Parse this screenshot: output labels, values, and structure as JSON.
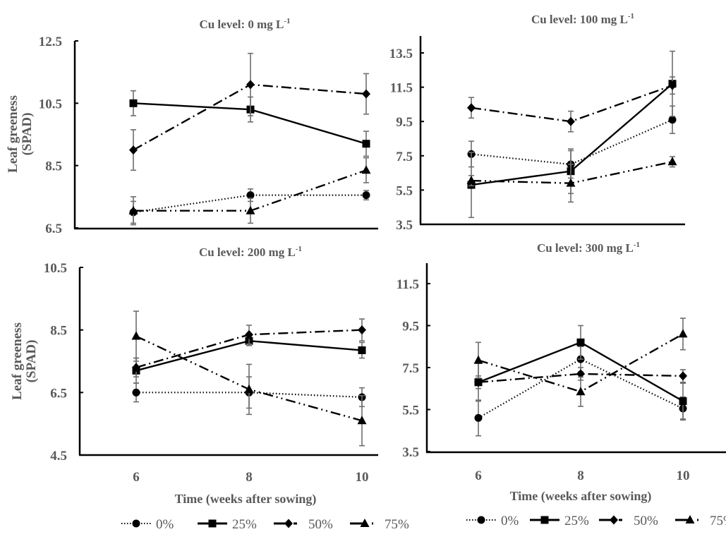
{
  "figure": {
    "legend": [
      "0%",
      "25%",
      "50%",
      "75%"
    ],
    "ylabel_line1": "Leaf  greeness",
    "ylabel_line2": "(SPAD)",
    "xlabel": "Time (weeks after sowing)"
  },
  "chart_data": [
    {
      "type": "line",
      "title": "Cu level: 0 mg L",
      "title_sup": "-1",
      "xlabel": "",
      "ylabel": "Leaf greeness (SPAD)",
      "x": [
        6,
        8,
        10
      ],
      "ylim": [
        6.5,
        12.5
      ],
      "yticks": [
        "12.5",
        "10.5",
        "8.5",
        "6.5"
      ],
      "xticks": [],
      "series": [
        {
          "name": "0%",
          "marker": "circle",
          "line": "dotted",
          "values": [
            7.0,
            7.55,
            7.55
          ],
          "errors": [
            0.35,
            0.2,
            0.15
          ]
        },
        {
          "name": "25%",
          "marker": "square",
          "line": "solid",
          "values": [
            10.5,
            10.3,
            9.2
          ],
          "errors": [
            0.4,
            0.4,
            0.4
          ]
        },
        {
          "name": "50%",
          "marker": "diamond",
          "line": "dashdot",
          "values": [
            9.0,
            11.1,
            10.8
          ],
          "errors": [
            0.65,
            1.0,
            0.65
          ]
        },
        {
          "name": "75%",
          "marker": "triangle",
          "line": "dashdotdot",
          "values": [
            7.05,
            7.05,
            8.35
          ],
          "errors": [
            0.45,
            0.4,
            0.4
          ]
        }
      ]
    },
    {
      "type": "line",
      "title": "Cu level: 100 mg L",
      "title_sup": "-1",
      "xlabel": "",
      "ylabel": "",
      "x": [
        6,
        8,
        10
      ],
      "ylim": [
        3.5,
        13.5
      ],
      "yticks": [
        "13.5",
        "11.5",
        "9.5",
        "7.5",
        "5.5",
        "3.5"
      ],
      "xticks": [],
      "series": [
        {
          "name": "0%",
          "marker": "circle",
          "line": "dotted",
          "values": [
            7.6,
            7.0,
            9.6
          ],
          "errors": [
            0.75,
            0.8,
            0.8
          ]
        },
        {
          "name": "25%",
          "marker": "square",
          "line": "solid",
          "values": [
            5.8,
            6.6,
            11.7
          ],
          "errors": [
            1.9,
            1.3,
            1.9
          ]
        },
        {
          "name": "50%",
          "marker": "diamond",
          "line": "dashdot",
          "values": [
            10.3,
            9.5,
            11.6
          ],
          "errors": [
            0.6,
            0.6,
            0.5
          ]
        },
        {
          "name": "75%",
          "marker": "triangle",
          "line": "dashdotdot",
          "values": [
            6.05,
            5.9,
            7.15
          ],
          "errors": [
            0.3,
            1.1,
            0.3
          ]
        }
      ]
    },
    {
      "type": "line",
      "title": "Cu level: 200 mg L",
      "title_sup": "-1",
      "xlabel": "Time (weeks after sowing)",
      "ylabel": "Leaf greeness (SPAD)",
      "x": [
        6,
        8,
        10
      ],
      "ylim": [
        4.5,
        10.5
      ],
      "yticks": [
        "10.5",
        "8.5",
        "6.5",
        "4.5"
      ],
      "xticks": [
        "6",
        "8",
        "10"
      ],
      "series": [
        {
          "name": "0%",
          "marker": "circle",
          "line": "dotted",
          "values": [
            6.5,
            6.5,
            6.35
          ],
          "errors": [
            0.3,
            0.5,
            0.3
          ]
        },
        {
          "name": "25%",
          "marker": "square",
          "line": "solid",
          "values": [
            7.2,
            8.15,
            7.85
          ],
          "errors": [
            0.4,
            0.15,
            0.25
          ]
        },
        {
          "name": "50%",
          "marker": "diamond",
          "line": "dashdot",
          "values": [
            7.3,
            8.35,
            8.5
          ],
          "errors": [
            0.3,
            0.3,
            0.35
          ]
        },
        {
          "name": "75%",
          "marker": "triangle",
          "line": "dashdotdot",
          "values": [
            8.3,
            6.6,
            5.6
          ],
          "errors": [
            0.8,
            0.8,
            0.8
          ]
        }
      ]
    },
    {
      "type": "line",
      "title": "Cu level: 300 mg L",
      "title_sup": "-1",
      "xlabel": "Time (weeks after sowing)",
      "ylabel": "",
      "x": [
        6,
        8,
        10
      ],
      "ylim": [
        3.5,
        12.5
      ],
      "yticks": [
        "11.5",
        "9.5",
        "7.5",
        "5.5",
        "3.5"
      ],
      "xticks": [
        "6",
        "8",
        "10"
      ],
      "series": [
        {
          "name": "0%",
          "marker": "circle",
          "line": "dotted",
          "values": [
            5.1,
            7.9,
            5.55
          ],
          "errors": [
            0.85,
            0.6,
            0.55
          ]
        },
        {
          "name": "25%",
          "marker": "square",
          "line": "solid",
          "values": [
            6.8,
            8.7,
            5.9
          ],
          "errors": [
            0.9,
            0.8,
            0.85
          ]
        },
        {
          "name": "50%",
          "marker": "diamond",
          "line": "dashdot",
          "values": [
            6.8,
            7.2,
            7.1
          ],
          "errors": [
            0.3,
            0.3,
            0.3
          ]
        },
        {
          "name": "75%",
          "marker": "triangle",
          "line": "dashdotdot",
          "values": [
            7.85,
            6.35,
            9.1
          ],
          "errors": [
            0.85,
            0.7,
            0.75
          ]
        }
      ]
    }
  ]
}
